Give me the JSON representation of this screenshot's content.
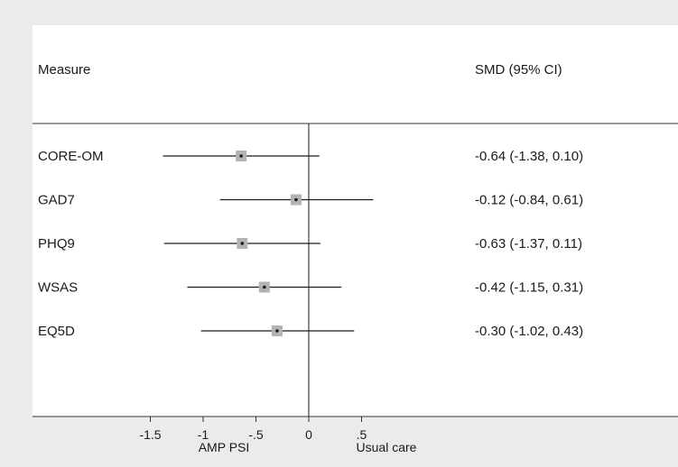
{
  "chart_data": {
    "type": "forest",
    "header": {
      "measure_label": "Measure",
      "estimate_label": "SMD (95% CI)"
    },
    "rows": [
      {
        "label": "CORE-OM",
        "estimate": -0.64,
        "lower": -1.38,
        "upper": 0.1,
        "ci_text": "-0.64 (-1.38, 0.10)"
      },
      {
        "label": "GAD7",
        "estimate": -0.12,
        "lower": -0.84,
        "upper": 0.61,
        "ci_text": "-0.12 (-0.84, 0.61)"
      },
      {
        "label": "PHQ9",
        "estimate": -0.63,
        "lower": -1.37,
        "upper": 0.11,
        "ci_text": "-0.63 (-1.37, 0.11)"
      },
      {
        "label": "WSAS",
        "estimate": -0.42,
        "lower": -1.15,
        "upper": 0.31,
        "ci_text": "-0.42 (-1.15, 0.31)"
      },
      {
        "label": "EQ5D",
        "estimate": -0.3,
        "lower": -1.02,
        "upper": 0.43,
        "ci_text": "-0.30 (-1.02, 0.43)"
      }
    ],
    "x_ticks": [
      -1.5,
      -1,
      -0.5,
      0,
      0.5
    ],
    "x_tick_labels": [
      "-1.5",
      "-1",
      "-.5",
      "0",
      ".5"
    ],
    "reference_line": 0,
    "favours_left": "AMP PSI",
    "favours_right": "Usual care",
    "colors": {
      "background": "#ebebeb",
      "plot": "#ffffff",
      "marker": "#b3b3b3",
      "line": "#1a1a1a"
    }
  }
}
